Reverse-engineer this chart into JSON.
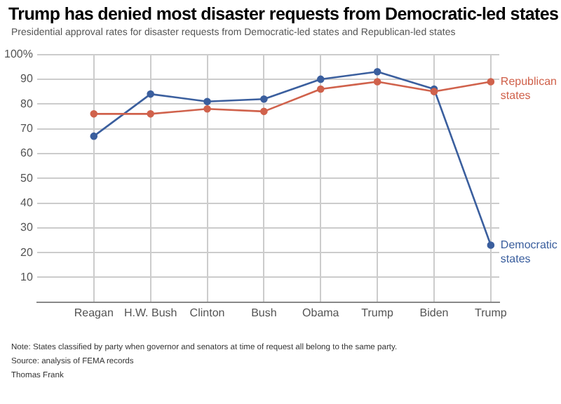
{
  "chart_data": {
    "type": "line",
    "title": "Trump has denied most disaster requests from Democratic-led states",
    "subtitle": "Presidential approval rates for disaster requests from Democratic-led states and Republican-led states",
    "categories": [
      "Reagan",
      "H.W. Bush",
      "Clinton",
      "Bush",
      "Obama",
      "Trump",
      "Biden",
      "Trump"
    ],
    "series": [
      {
        "name": "Democratic states",
        "color": "#3b5f9e",
        "values": [
          67,
          84,
          81,
          82,
          90,
          93,
          86,
          23
        ]
      },
      {
        "name": "Republican states",
        "color": "#d0624c",
        "values": [
          76,
          76,
          78,
          77,
          86,
          89,
          85,
          89
        ]
      }
    ],
    "ylim": [
      0,
      100
    ],
    "yticks": [
      10,
      20,
      30,
      40,
      50,
      60,
      70,
      80,
      90,
      {
        "value": 100,
        "label": "100%"
      }
    ],
    "grid": true,
    "legend": false,
    "marker": "circle",
    "line_style": "solid",
    "annotations": [
      "Note: States classified by party when governor and senators at time of request all belong to the same party.",
      "Source: analysis of FEMA records",
      "Thomas Frank"
    ]
  }
}
